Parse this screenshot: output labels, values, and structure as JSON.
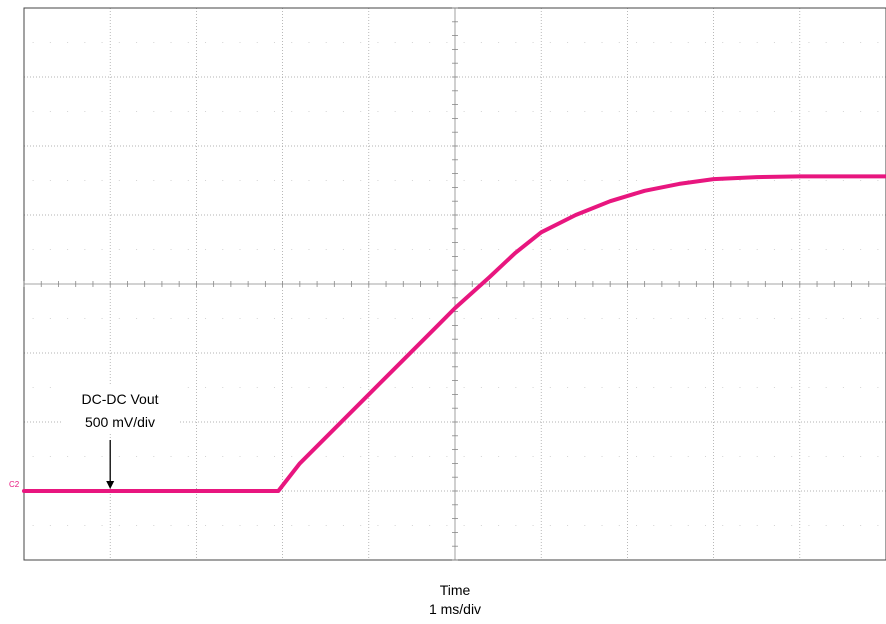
{
  "chart_data": {
    "type": "line",
    "title": "",
    "xlabel": "Time",
    "xscale": "1 ms/div",
    "ylabel": "",
    "grid": true,
    "x_divisions": 10,
    "y_divisions": 8,
    "xlim": [
      0,
      10
    ],
    "ylim": [
      -4,
      4
    ],
    "channel_marker": "C2",
    "series_color": "#e8167f",
    "series": [
      {
        "name": "",
        "x": [
          0,
          0.5,
          1,
          1.5,
          2,
          2.5,
          2.95,
          3.2,
          3.6,
          4.0,
          4.4,
          4.8,
          5.0,
          5.4,
          5.7,
          6.0,
          6.4,
          6.8,
          7.2,
          7.6,
          8.0,
          8.5,
          9.0,
          9.5,
          10
        ],
        "y": [
          -3.0,
          -3.0,
          -3.0,
          -3.0,
          -3.0,
          -3.0,
          -3.0,
          -2.6,
          -2.1,
          -1.6,
          -1.1,
          -0.6,
          -0.35,
          0.1,
          0.45,
          0.75,
          1.0,
          1.2,
          1.35,
          1.45,
          1.52,
          1.55,
          1.56,
          1.56,
          1.56
        ]
      }
    ],
    "annotations": [
      {
        "text_line1": "DC-DC Vout",
        "text_line2": "500 mV/div",
        "arrow_x": 1.0,
        "arrow_y": -3.0
      }
    ]
  }
}
